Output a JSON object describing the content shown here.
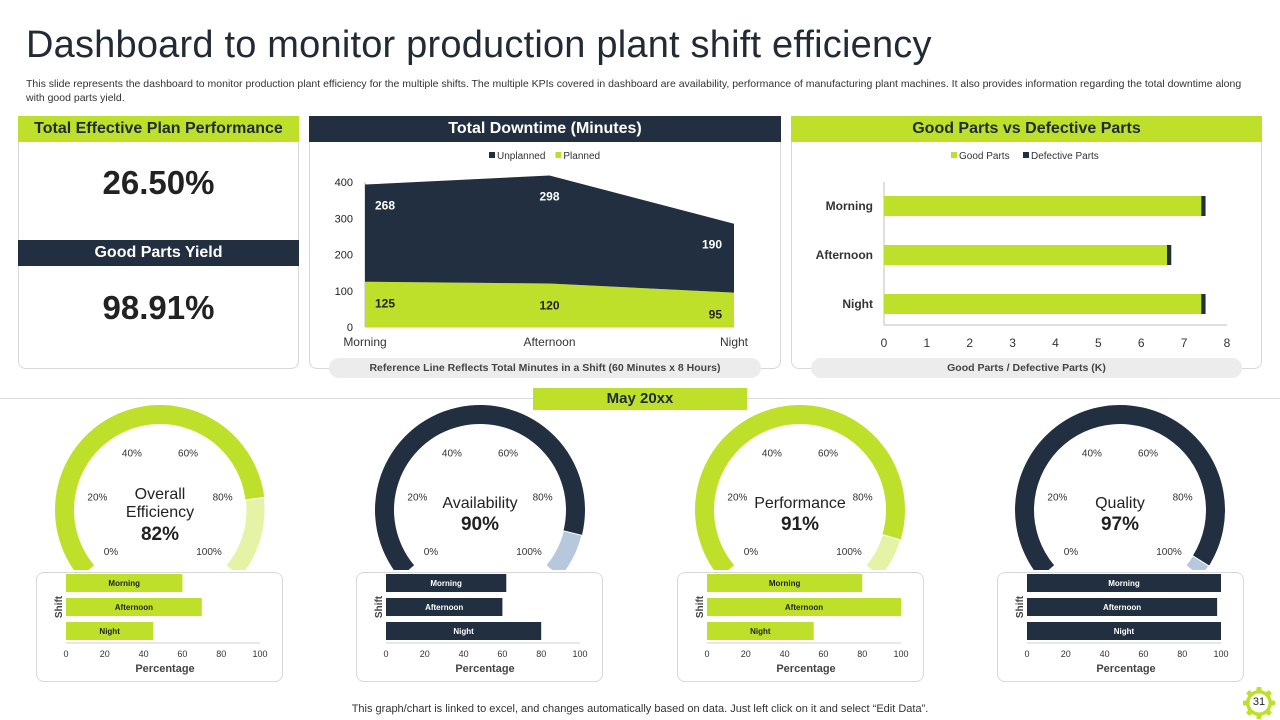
{
  "header": {
    "title": "Dashboard to monitor production plant shift efficiency",
    "subtitle": "This slide represents the dashboard to monitor production plant efficiency for the multiple shifts. The multiple KPIs covered in dashboard are availability, performance of manufacturing plant machines. It also provides information regarding the total downtime along with good parts yield."
  },
  "kpis": {
    "plan_performance": {
      "label": "Total Effective  Plan Performance",
      "value": "26.50%"
    },
    "good_parts_yield": {
      "label": "Good Parts Yield",
      "value": "98.91%"
    }
  },
  "downtime": {
    "label": "Total Downtime (Minutes)",
    "footer": "Reference Line Reflects Total Minutes in a Shift (60 Minutes x 8 Hours)"
  },
  "parts": {
    "label": "Good Parts vs Defective  Parts",
    "footer": "Good Parts / Defective Parts (K)"
  },
  "month_label": "May 20xx",
  "footer_note": "This graph/chart is linked to excel,  and changes automatically based on data. Just left click on it and select “Edit Data”.",
  "page_number": "31",
  "gauges": [
    {
      "label": "Overall Efficiency",
      "value": "82%"
    },
    {
      "label": "Availability",
      "value": "90%"
    },
    {
      "label": "Performance",
      "value": "91%"
    },
    {
      "label": "Quality",
      "value": "97%"
    }
  ],
  "chart_data": [
    {
      "id": "downtime",
      "type": "area",
      "stacked": true,
      "categories": [
        "Morning",
        "Afternoon",
        "Night"
      ],
      "series": [
        {
          "name": "Unplanned",
          "values": [
            268,
            298,
            190
          ],
          "color": "#222f40"
        },
        {
          "name": "Planned",
          "values": [
            125,
            120,
            95
          ],
          "color": "#bfe02b"
        }
      ],
      "ylim": [
        0,
        400
      ],
      "yticks": [
        0,
        100,
        200,
        300,
        400
      ],
      "legend": "top"
    },
    {
      "id": "parts",
      "type": "bar",
      "orientation": "horizontal",
      "stacked": true,
      "categories": [
        "Morning",
        "Afternoon",
        "Night"
      ],
      "series": [
        {
          "name": "Good Parts",
          "values": [
            7.4,
            6.6,
            7.4
          ],
          "color": "#bfe02b"
        },
        {
          "name": "Defective Parts",
          "values": [
            0.1,
            0.1,
            0.1
          ],
          "color": "#222f40"
        }
      ],
      "xlim": [
        0,
        8
      ],
      "xticks": [
        0,
        1,
        2,
        3,
        4,
        5,
        6,
        7,
        8
      ],
      "xlabel": "Good Parts / Defective Parts (K)",
      "legend": "top"
    },
    {
      "id": "gauges",
      "type": "gauge",
      "ticks": [
        "0%",
        "20%",
        "40%",
        "60%",
        "80%",
        "100%"
      ],
      "items": [
        {
          "name": "Overall Efficiency",
          "value": 82,
          "color": "#bfe02b",
          "rest_color": "#e4f3a6"
        },
        {
          "name": "Availability",
          "value": 90,
          "color": "#222f40",
          "rest_color": "#b7c8dc"
        },
        {
          "name": "Performance",
          "value": 91,
          "color": "#bfe02b",
          "rest_color": "#e4f3a6"
        },
        {
          "name": "Quality",
          "value": 97,
          "color": "#222f40",
          "rest_color": "#b7c8dc"
        }
      ]
    },
    {
      "id": "shift_bars",
      "type": "bar",
      "orientation": "horizontal",
      "categories": [
        "Morning",
        "Afternoon",
        "Night"
      ],
      "xlim": [
        0,
        100
      ],
      "xticks": [
        0,
        20,
        40,
        60,
        80,
        100
      ],
      "xlabel": "Percentage",
      "ylabel": "Shift",
      "panels": [
        {
          "name": "Overall Efficiency",
          "values": [
            60,
            70,
            45
          ],
          "color": "#bfe02b"
        },
        {
          "name": "Availability",
          "values": [
            62,
            60,
            80
          ],
          "color": "#222f40"
        },
        {
          "name": "Performance",
          "values": [
            80,
            100,
            55
          ],
          "color": "#bfe02b"
        },
        {
          "name": "Quality",
          "values": [
            100,
            98,
            100
          ],
          "color": "#222f40"
        }
      ]
    }
  ]
}
